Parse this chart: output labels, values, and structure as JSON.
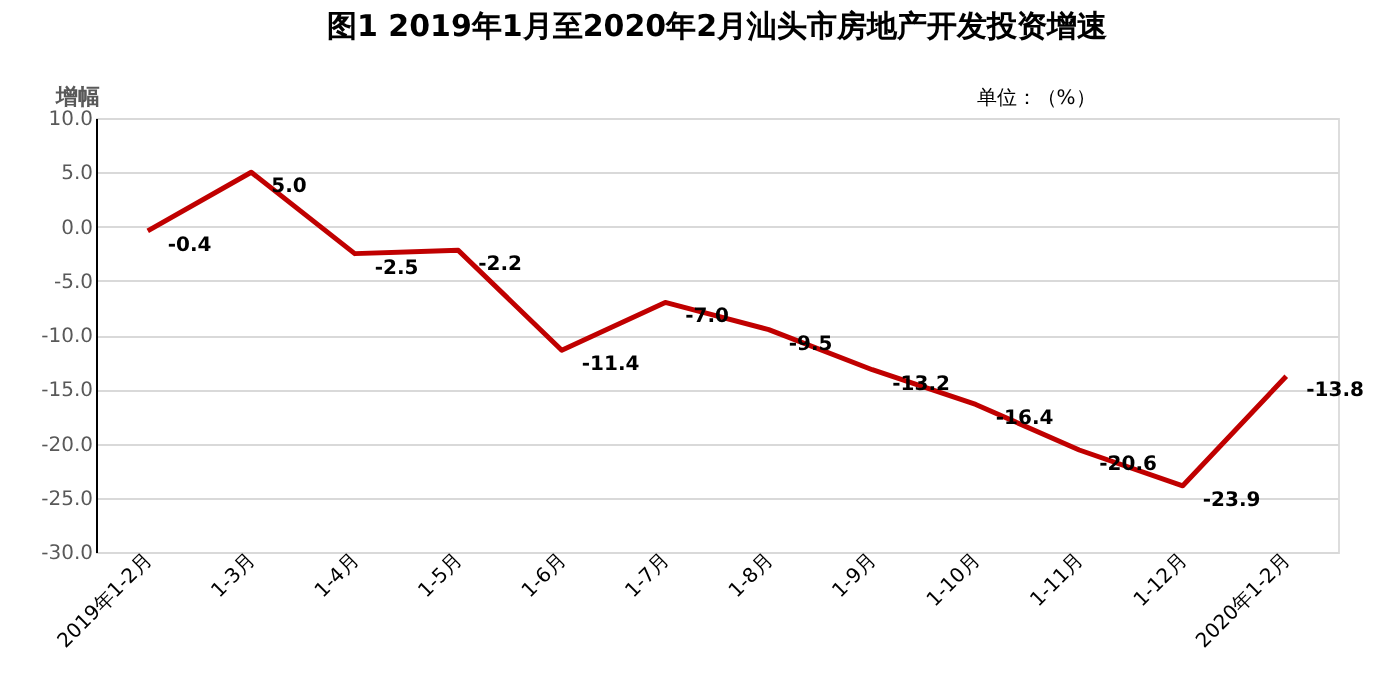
{
  "chart_data": {
    "type": "line",
    "title": "图1  2019年1月至2020年2月汕头市房地产开发投资增速",
    "ylabel": "增幅",
    "annotations": [
      "单位：（%）"
    ],
    "categories": [
      "2019年1-2月",
      "1-3月",
      "1-4月",
      "1-5月",
      "1-6月",
      "1-7月",
      "1-8月",
      "1-9月",
      "1-10月",
      "1-11月",
      "1-12月",
      "2020年1-2月"
    ],
    "series": [
      {
        "color": "#c00000",
        "values": [
          -0.4,
          5.0,
          -2.5,
          -2.2,
          -11.4,
          -7.0,
          -9.5,
          -13.2,
          -16.4,
          -20.6,
          -23.9,
          -13.8
        ],
        "value_labels": [
          "-0.4",
          "5.0",
          "-2.5",
          "-2.2",
          "-11.4",
          "-7.0",
          "-9.5",
          "-13.2",
          "-16.4",
          "-20.6",
          "-23.9",
          "-13.8"
        ]
      }
    ],
    "ylim": [
      -30,
      10
    ],
    "yticks": [
      {
        "value": -30,
        "label": "-30.0"
      },
      {
        "value": -25,
        "label": "-25.0"
      },
      {
        "value": -20,
        "label": "-20.0"
      },
      {
        "value": -15,
        "label": "-15.0"
      },
      {
        "value": -10,
        "label": "-10.0"
      },
      {
        "value": -5,
        "label": "-5.0"
      },
      {
        "value": 0,
        "label": "0.0"
      },
      {
        "value": 5,
        "label": "5.0"
      },
      {
        "value": 10,
        "label": "10.0"
      }
    ],
    "grid": "y",
    "legend": false,
    "marker": "none",
    "line_style": "solid"
  }
}
